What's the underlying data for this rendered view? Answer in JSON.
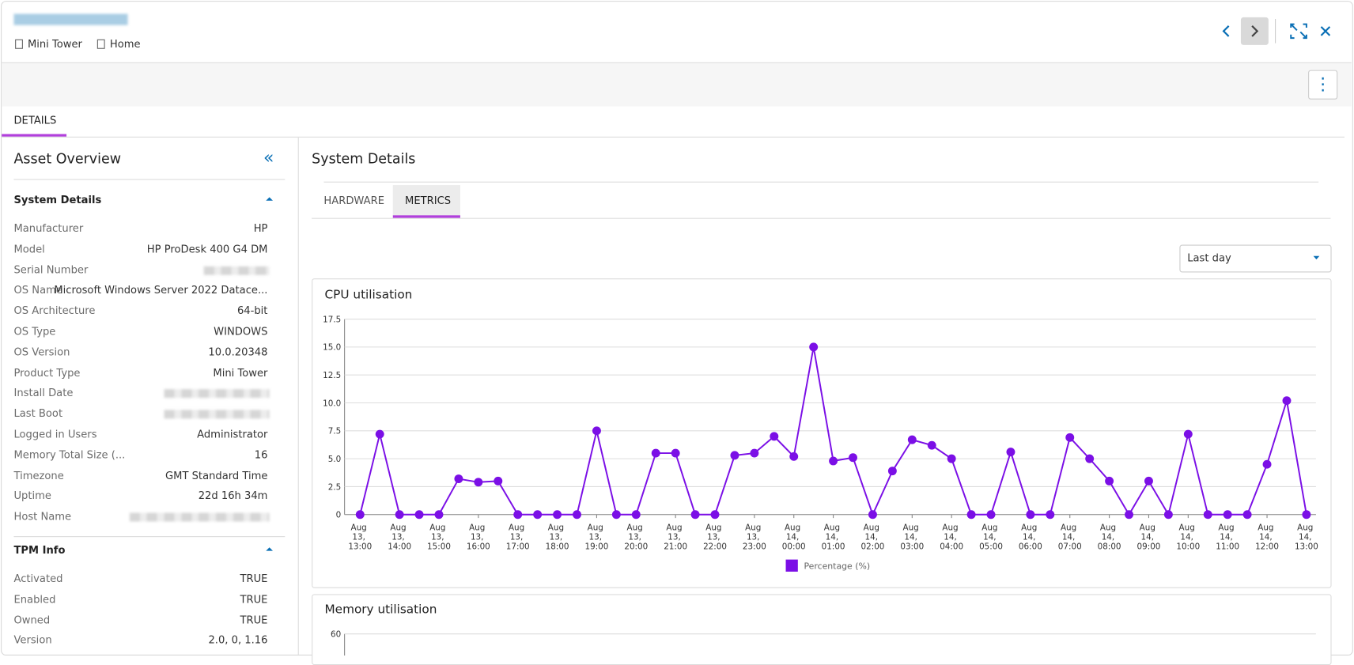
{
  "header": {
    "breadcrumbs": [
      "Mini Tower",
      "Home"
    ]
  },
  "tabs": [
    "DETAILS"
  ],
  "sidebar": {
    "title": "Asset Overview",
    "sections": [
      {
        "title": "System Details",
        "rows": [
          {
            "label": "Manufacturer",
            "value": "HP"
          },
          {
            "label": "Model",
            "value": "HP ProDesk 400 G4 DM"
          },
          {
            "label": "Serial Number"
          },
          {
            "label": "OS Name",
            "value": "Microsoft Windows Server 2022 Datace..."
          },
          {
            "label": "OS Architecture",
            "value": "64-bit"
          },
          {
            "label": "OS Type",
            "value": "WINDOWS"
          },
          {
            "label": "OS Version",
            "value": "10.0.20348"
          },
          {
            "label": "Product Type",
            "value": "Mini Tower"
          },
          {
            "label": "Install Date"
          },
          {
            "label": "Last Boot"
          },
          {
            "label": "Logged in Users",
            "value": "Administrator"
          },
          {
            "label": "Memory Total Size (...",
            "value": "16"
          },
          {
            "label": "Timezone",
            "value": "GMT Standard Time"
          },
          {
            "label": "Uptime",
            "value": "22d 16h 34m"
          },
          {
            "label": "Host Name"
          }
        ]
      },
      {
        "title": "TPM Info",
        "rows": [
          {
            "label": "Activated",
            "value": "TRUE"
          },
          {
            "label": "Enabled",
            "value": "TRUE"
          },
          {
            "label": "Owned",
            "value": "TRUE"
          },
          {
            "label": "Version",
            "value": "2.0, 0, 1.16"
          }
        ]
      }
    ]
  },
  "main": {
    "title": "System Details",
    "tabs": [
      "HARDWARE",
      "METRICS"
    ],
    "range": "Last day"
  },
  "chart_data": [
    {
      "type": "line",
      "title": "CPU utilisation",
      "categories": [
        "Aug 13, 13:00",
        null,
        "Aug 13, 14:00",
        null,
        "Aug 13, 15:00",
        null,
        "Aug 13, 16:00",
        null,
        "Aug 13, 17:00",
        null,
        "Aug 13, 18:00",
        null,
        "Aug 13, 19:00",
        null,
        "Aug 13, 20:00",
        null,
        "Aug 13, 21:00",
        null,
        "Aug 13, 22:00",
        null,
        "Aug 13, 23:00",
        null,
        "Aug 14, 00:00",
        null,
        "Aug 14, 01:00",
        null,
        "Aug 14, 02:00",
        null,
        "Aug 14, 03:00",
        null,
        "Aug 14, 04:00",
        null,
        "Aug 14, 05:00",
        null,
        "Aug 14, 06:00",
        null,
        "Aug 14, 07:00",
        null,
        "Aug 14, 08:00",
        null,
        "Aug 14, 09:00",
        null,
        "Aug 14, 10:00",
        null,
        "Aug 14, 11:00",
        null,
        "Aug 14, 12:00",
        null,
        "Aug 14, 13:00"
      ],
      "series": [
        {
          "name": "Percentage (%)",
          "color": "#7b0fe6",
          "values": [
            0,
            7.2,
            0,
            0,
            0,
            3.2,
            2.9,
            3.0,
            0,
            0,
            0,
            0,
            7.5,
            0,
            0,
            5.5,
            5.5,
            0,
            0,
            5.3,
            5.5,
            7.0,
            5.2,
            15.0,
            4.8,
            5.1,
            0,
            3.9,
            6.7,
            6.2,
            5.0,
            0,
            0,
            5.6,
            0,
            0,
            6.9,
            5.0,
            3.0,
            0,
            3.0,
            0,
            7.2,
            0,
            0,
            0,
            4.5,
            10.2,
            0
          ]
        }
      ],
      "ylim": [
        0,
        17.5
      ],
      "yticks": [
        0,
        2.5,
        {
          "value": 5,
          "label": "5.0"
        },
        {
          "value": 7.5,
          "label": "7.5"
        },
        {
          "value": 10,
          "label": "10.0"
        },
        12.5,
        {
          "value": 15,
          "label": "15.0"
        },
        17.5
      ],
      "grid": true,
      "legend": "bottom"
    },
    {
      "type": "line",
      "title": "Memory utilisation",
      "ylim": [
        0,
        60
      ],
      "yticks": [
        60
      ],
      "grid": true
    }
  ]
}
